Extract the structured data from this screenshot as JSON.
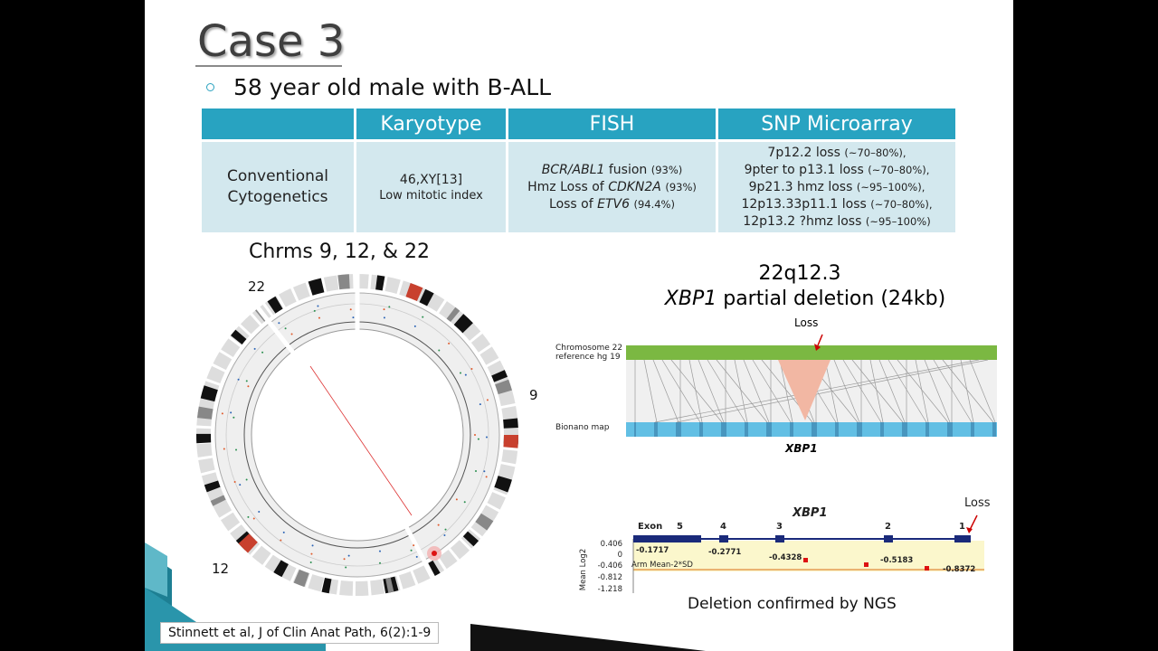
{
  "slide": {
    "title": "Case 3",
    "bullet": "58 year old male with B-ALL"
  },
  "table": {
    "headers": [
      "Karyotype",
      "FISH",
      "SNP Microarray"
    ],
    "row": {
      "label": "Conventional Cytogenetics",
      "karyotype": [
        "46,XY[13]",
        "Low mitotic index"
      ],
      "fish": [
        [
          {
            "text": "BCR/ABL1",
            "italic": true
          },
          {
            "text": "fusion"
          },
          {
            "text": "(93%)",
            "small": true
          }
        ],
        [
          {
            "text": "Hmz Loss of"
          },
          {
            "text": "CDKN2A",
            "italic": true
          },
          {
            "text": "(93%)",
            "small": true
          }
        ],
        [
          {
            "text": "Loss of"
          },
          {
            "text": "ETV6",
            "italic": true
          },
          {
            "text": "(94.4%)",
            "small": true
          }
        ]
      ],
      "snp": [
        {
          "text": "7p12.2 loss",
          "note": "(~70–80%),"
        },
        {
          "text": "9pter to p13.1 loss",
          "note": "(~70–80%),"
        },
        {
          "text": "9p21.3 hmz loss",
          "note": "(~95–100%),"
        },
        {
          "text": "12p13.33p11.1 loss",
          "note": "(~70–80%),"
        },
        {
          "text": "12p13.2 ?hmz loss",
          "note": "(~95–100%)"
        }
      ]
    }
  },
  "circos": {
    "caption": "Chrms 9, 12, & 22",
    "labels": [
      "22",
      "9",
      "12"
    ]
  },
  "bionano": {
    "heading": "22q12.3",
    "gene_italic": "XBP1",
    "subtitle": "partial deletion (24kb)",
    "loss": "Loss",
    "reference_label": [
      "Chromosome 22",
      "reference hg 19"
    ],
    "map_label": "Bionano map",
    "gene": "XBP1"
  },
  "ngs": {
    "gene": "XBP1",
    "loss": "Loss",
    "exon_label": "Exon",
    "exons": [
      "5",
      "4",
      "3",
      "2",
      "1"
    ],
    "y_label": "Mean Log2",
    "y_ticks": [
      "0.406",
      "0",
      "-0.406",
      "-0.812",
      "-1.218"
    ],
    "values": [
      "-0.1717",
      "-0.2771",
      "-0.4328",
      "-0.5183",
      "-0.8372"
    ],
    "threshold_label": "Arm Mean-2*SD",
    "caption": "Deletion confirmed by NGS"
  },
  "citation": "Stinnett et al, J of Clin Anat Path, 6(2):1-9"
}
